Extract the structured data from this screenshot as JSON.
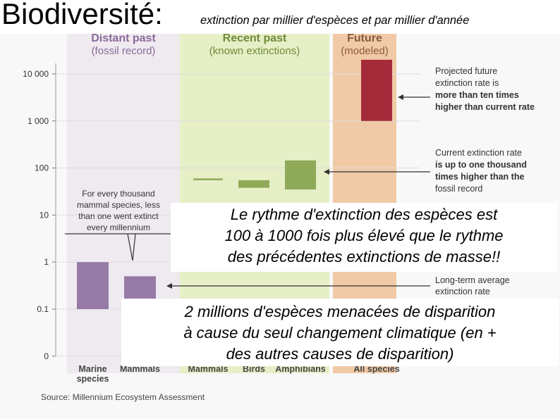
{
  "title": "Biodiversité:",
  "subtitle": "extinction par millier d'espèces et par millier d'année",
  "overlay_text_1": [
    "Le rythme d'extinction des espèces est",
    "100 à 1000 fois plus élevé que le rythme",
    "des précédentes extinctions de masse!!"
  ],
  "overlay_text_2": [
    "2 millions d'espèces menacées de disparition",
    "à cause du seul changement climatique (en +",
    "des autres causes de disparition)"
  ],
  "chart_data": {
    "type": "bar",
    "y_scale": "log",
    "y_ticks": [
      "10 000",
      "1 000",
      "100",
      "10",
      "1",
      "0.1",
      "0"
    ],
    "panels": [
      {
        "title": [
          "Distant past",
          "(fossil record)"
        ],
        "color": "#efeaef",
        "title_color": "#8a6a9a"
      },
      {
        "title": [
          "Recent past",
          "(known extinctions)"
        ],
        "color": "#e6efc6",
        "title_color": "#6e8a3a"
      },
      {
        "title": [
          "Future",
          "(modeled)"
        ],
        "color": "#f0caa6",
        "title_color": "#8a5a3a"
      }
    ],
    "categories": [
      {
        "label": [
          "Marine",
          "species"
        ],
        "low": 0.1,
        "high": 1,
        "color": "#957aa5"
      },
      {
        "label": [
          "Mammals"
        ],
        "low": 0.15,
        "high": 0.5,
        "color": "#957aa5"
      },
      {
        "label": [
          "Mammals"
        ],
        "low": 55,
        "high": 60,
        "color": "#8faa58"
      },
      {
        "label": [
          "Birds"
        ],
        "low": 38,
        "high": 55,
        "color": "#8faa58"
      },
      {
        "label": [
          "Amphibians"
        ],
        "low": 35,
        "high": 145,
        "color": "#8faa58"
      },
      {
        "label": [
          "All species"
        ],
        "low": 1000,
        "high": 20000,
        "color": "#a52a3a"
      }
    ],
    "annotations": {
      "future": [
        "Projected future",
        "extinction rate is",
        "more than ten times",
        "higher than current rate"
      ],
      "current": [
        "Current extinction rate",
        "is up to one thousand",
        "times higher than the",
        "fossil record"
      ],
      "longterm": [
        "Long-term average",
        "extinction rate"
      ],
      "fossil": [
        "For every thousand",
        "mammal species, less",
        "than one went extinct",
        "every millennium"
      ]
    },
    "source": "Source: Millennium Ecosystem Assessment"
  }
}
